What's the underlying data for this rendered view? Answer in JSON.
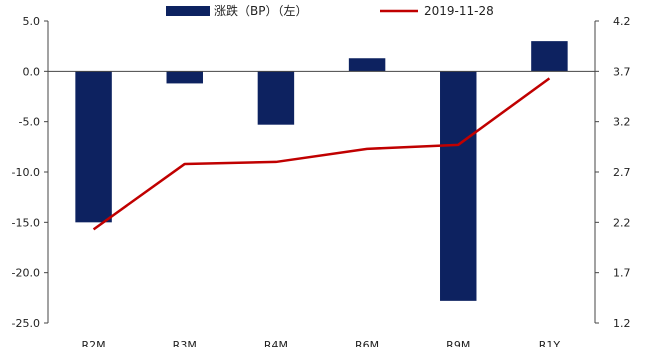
{
  "chart_data": {
    "type": "bar+line",
    "categories": [
      "R2M",
      "R3M",
      "R4M",
      "R6M",
      "R9M",
      "R1Y"
    ],
    "series": [
      {
        "name": "涨跌（BP）（左）",
        "type": "bar",
        "axis": "left",
        "color": "#0d2260",
        "values": [
          -15.0,
          -1.2,
          -5.3,
          1.3,
          -22.8,
          3.0
        ]
      },
      {
        "name": "2019-11-28",
        "type": "line",
        "axis": "right",
        "color": "#c00000",
        "values": [
          2.13,
          2.78,
          2.8,
          2.93,
          2.97,
          3.63
        ]
      }
    ],
    "y_left": {
      "ylim": [
        -25.0,
        5.0
      ],
      "ticks": [
        "5.0",
        "0.0",
        "-5.0",
        "-10.0",
        "-15.0",
        "-20.0",
        "-25.0"
      ]
    },
    "y_right": {
      "ylim": [
        1.2,
        4.2
      ],
      "ticks": [
        "4.2",
        "3.7",
        "3.2",
        "2.7",
        "2.2",
        "1.7",
        "1.2"
      ]
    },
    "legend": "top-center",
    "grid": false
  }
}
